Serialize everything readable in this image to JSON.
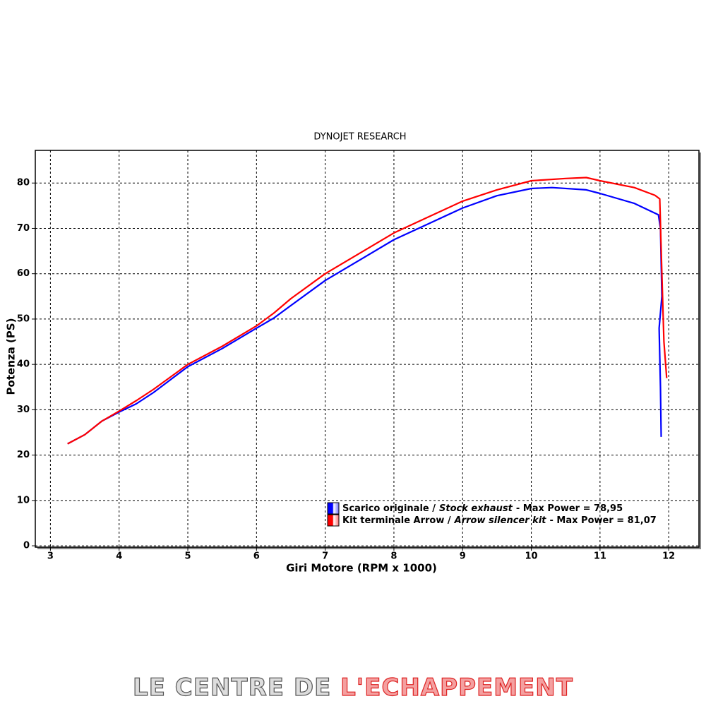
{
  "chart_data": {
    "type": "line",
    "title": "DYNOJET RESEARCH",
    "x_label": "Giri Motore (RPM x 1000)",
    "y_label": "Potenza (PS)",
    "xlim": [
      2.78,
      12.44
    ],
    "ylim": [
      -0.3,
      87.2
    ],
    "xticks": [
      3,
      4,
      5,
      6,
      7,
      8,
      9,
      10,
      11,
      12
    ],
    "yticks": [
      0,
      10,
      20,
      30,
      40,
      50,
      60,
      70,
      80
    ],
    "grid": true,
    "series": [
      {
        "name": [
          "Scarico originale /",
          "Stock exhaust",
          "-  Max Power = 78,95"
        ],
        "color": "#0000ff",
        "x": [
          3.25,
          3.5,
          3.75,
          4,
          4.25,
          4.5,
          5,
          5.5,
          6,
          6.25,
          6.5,
          7,
          7.5,
          8,
          8.5,
          9,
          9.5,
          10,
          10.3,
          10.8,
          11,
          11.5,
          11.85,
          11.88,
          11.9,
          11.86,
          11.88,
          11.89
        ],
        "values": [
          22.5,
          24.5,
          27.5,
          29.5,
          31.3,
          33.8,
          39.5,
          43.5,
          48,
          50.2,
          53,
          58.5,
          63,
          67.5,
          71,
          74.5,
          77.2,
          78.8,
          79,
          78.5,
          77.7,
          75.5,
          73,
          70,
          55,
          48,
          35,
          24
        ]
      },
      {
        "name": [
          "Kit terminale Arrow /",
          "Arrow silencer kit",
          "- Max Power = 81,07"
        ],
        "color": "#ff0000",
        "x": [
          3.25,
          3.5,
          3.75,
          4,
          4.25,
          4.5,
          5,
          5.5,
          6,
          6.25,
          6.5,
          7,
          7.5,
          8,
          8.5,
          9,
          9.5,
          10,
          10.5,
          10.8,
          11,
          11.5,
          11.8,
          11.87,
          11.9,
          11.93,
          11.97
        ],
        "values": [
          22.5,
          24.5,
          27.5,
          29.7,
          32,
          34.5,
          40,
          44,
          48.5,
          51.3,
          54.5,
          60,
          64.5,
          69,
          72.5,
          76,
          78.5,
          80.5,
          81,
          81.2,
          80.5,
          79,
          77.3,
          76.5,
          60,
          45,
          37
        ]
      }
    ]
  },
  "footer": [
    "LE CENTRE DE ",
    "L'ECHAPPEMENT"
  ]
}
